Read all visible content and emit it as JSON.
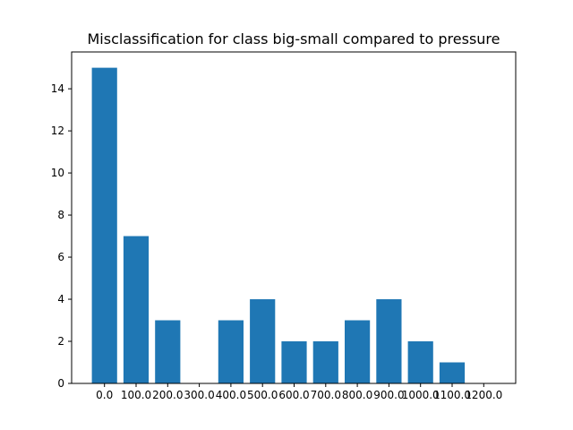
{
  "chart_data": {
    "type": "bar",
    "title": "Misclassification for class big-small compared to pressure",
    "xlabel": "",
    "ylabel": "",
    "categories": [
      "0.0",
      "100.0",
      "200.0",
      "300.0",
      "400.0",
      "500.0",
      "600.0",
      "700.0",
      "800.0",
      "900.0",
      "1000.0",
      "1100.0",
      "1200.0"
    ],
    "values": [
      15,
      7,
      3,
      0,
      3,
      4,
      2,
      2,
      3,
      4,
      2,
      1,
      0
    ],
    "yticks": [
      "0",
      "2",
      "4",
      "6",
      "8",
      "10",
      "12",
      "14"
    ],
    "ylim": [
      0,
      15.75
    ],
    "grid": false,
    "bar_color": "#1f77b4"
  }
}
